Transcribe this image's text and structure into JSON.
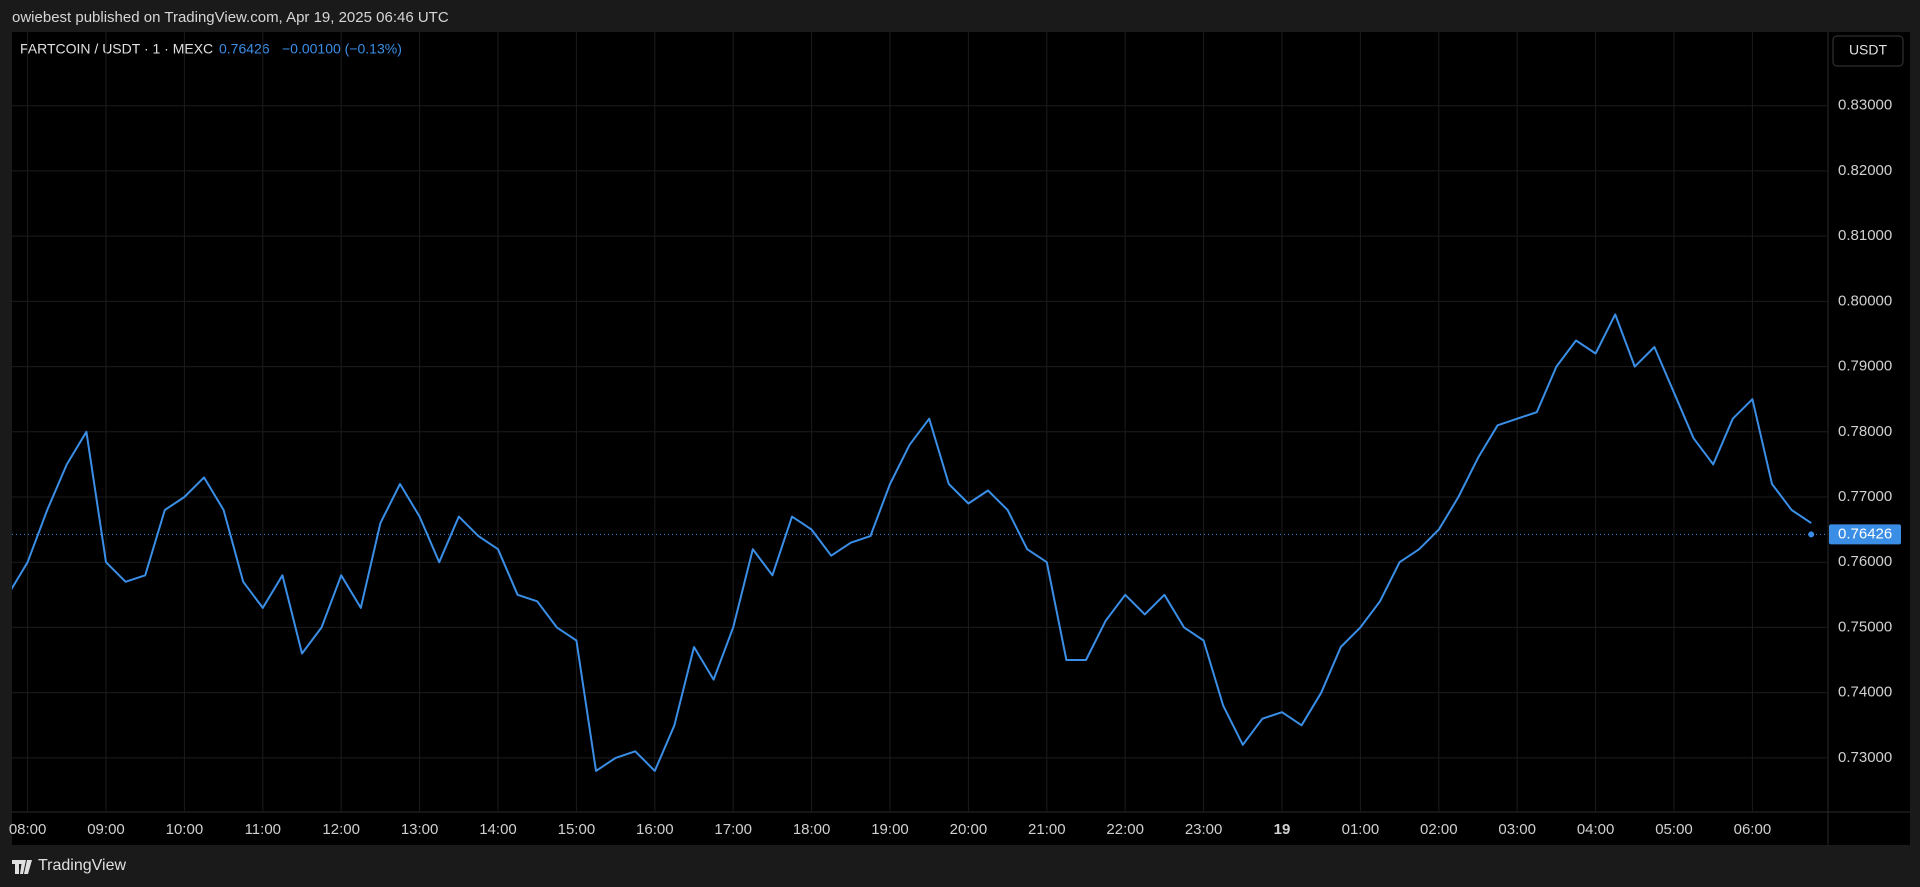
{
  "publisher": "owiebest published on TradingView.com, Apr 19, 2025 06:46 UTC",
  "brand": "TradingView",
  "chart_data": {
    "type": "line",
    "title": "FARTCOIN / USDT · 1 · MEXC",
    "last_value": 0.76426,
    "last_label": "0.76426",
    "change": "−0.00100 (−0.13%)",
    "currency": "USDT",
    "color": "#3a8ee6",
    "grid": true,
    "x": [
      "07:45",
      "08:00",
      "08:15",
      "08:30",
      "08:45",
      "09:00",
      "09:15",
      "09:30",
      "09:45",
      "10:00",
      "10:15",
      "10:30",
      "10:45",
      "11:00",
      "11:15",
      "11:30",
      "11:45",
      "12:00",
      "12:15",
      "12:30",
      "12:45",
      "13:00",
      "13:15",
      "13:30",
      "13:45",
      "14:00",
      "14:15",
      "14:30",
      "14:45",
      "15:00",
      "15:15",
      "15:30",
      "15:45",
      "16:00",
      "16:15",
      "16:30",
      "16:45",
      "17:00",
      "17:15",
      "17:30",
      "17:45",
      "18:00",
      "18:15",
      "18:30",
      "18:45",
      "19:00",
      "19:15",
      "19:30",
      "19:45",
      "20:00",
      "20:15",
      "20:30",
      "20:45",
      "21:00",
      "21:15",
      "21:30",
      "21:45",
      "22:00",
      "22:15",
      "22:30",
      "22:45",
      "23:00",
      "23:15",
      "23:30",
      "23:45",
      "00:00",
      "00:15",
      "00:30",
      "00:45",
      "01:00",
      "01:15",
      "01:30",
      "01:45",
      "02:00",
      "02:15",
      "02:30",
      "02:45",
      "03:00",
      "03:15",
      "03:30",
      "03:45",
      "04:00",
      "04:15",
      "04:30",
      "04:45",
      "05:00",
      "05:15",
      "05:30",
      "05:45",
      "06:00",
      "06:15",
      "06:30",
      "06:45"
    ],
    "values": [
      0.755,
      0.76,
      0.768,
      0.775,
      0.78,
      0.76,
      0.757,
      0.758,
      0.768,
      0.77,
      0.773,
      0.768,
      0.757,
      0.753,
      0.758,
      0.746,
      0.75,
      0.758,
      0.753,
      0.766,
      0.772,
      0.767,
      0.76,
      0.767,
      0.764,
      0.762,
      0.755,
      0.754,
      0.75,
      0.748,
      0.728,
      0.73,
      0.731,
      0.728,
      0.735,
      0.747,
      0.742,
      0.75,
      0.762,
      0.758,
      0.767,
      0.765,
      0.761,
      0.763,
      0.764,
      0.772,
      0.778,
      0.782,
      0.772,
      0.769,
      0.771,
      0.768,
      0.762,
      0.76,
      0.745,
      0.745,
      0.751,
      0.755,
      0.752,
      0.755,
      0.75,
      0.748,
      0.738,
      0.732,
      0.736,
      0.737,
      0.735,
      0.74,
      0.747,
      0.75,
      0.754,
      0.76,
      0.762,
      0.765,
      0.77,
      0.776,
      0.781,
      0.782,
      0.783,
      0.79,
      0.794,
      0.792,
      0.798,
      0.79,
      0.793,
      0.786,
      0.779,
      0.775,
      0.782,
      0.785,
      0.772,
      0.768,
      0.766
    ],
    "ylim": [
      0.7217,
      0.8413
    ],
    "yticks": [
      {
        "value": 0.73,
        "label": "0.73000"
      },
      {
        "value": 0.74,
        "label": "0.74000"
      },
      {
        "value": 0.75,
        "label": "0.75000"
      },
      {
        "value": 0.76,
        "label": "0.76000"
      },
      {
        "value": 0.77,
        "label": "0.77000"
      },
      {
        "value": 0.78,
        "label": "0.78000"
      },
      {
        "value": 0.79,
        "label": "0.79000"
      },
      {
        "value": 0.8,
        "label": "0.80000"
      },
      {
        "value": 0.81,
        "label": "0.81000"
      },
      {
        "value": 0.82,
        "label": "0.82000"
      },
      {
        "value": 0.83,
        "label": "0.83000"
      }
    ],
    "xticks": [
      "08:00",
      "09:00",
      "10:00",
      "11:00",
      "12:00",
      "13:00",
      "14:00",
      "15:00",
      "16:00",
      "17:00",
      "18:00",
      "19:00",
      "20:00",
      "21:00",
      "22:00",
      "23:00",
      {
        "value": "00:00",
        "label": "19"
      },
      "01:00",
      "02:00",
      "03:00",
      "04:00",
      "05:00",
      "06:00"
    ]
  }
}
